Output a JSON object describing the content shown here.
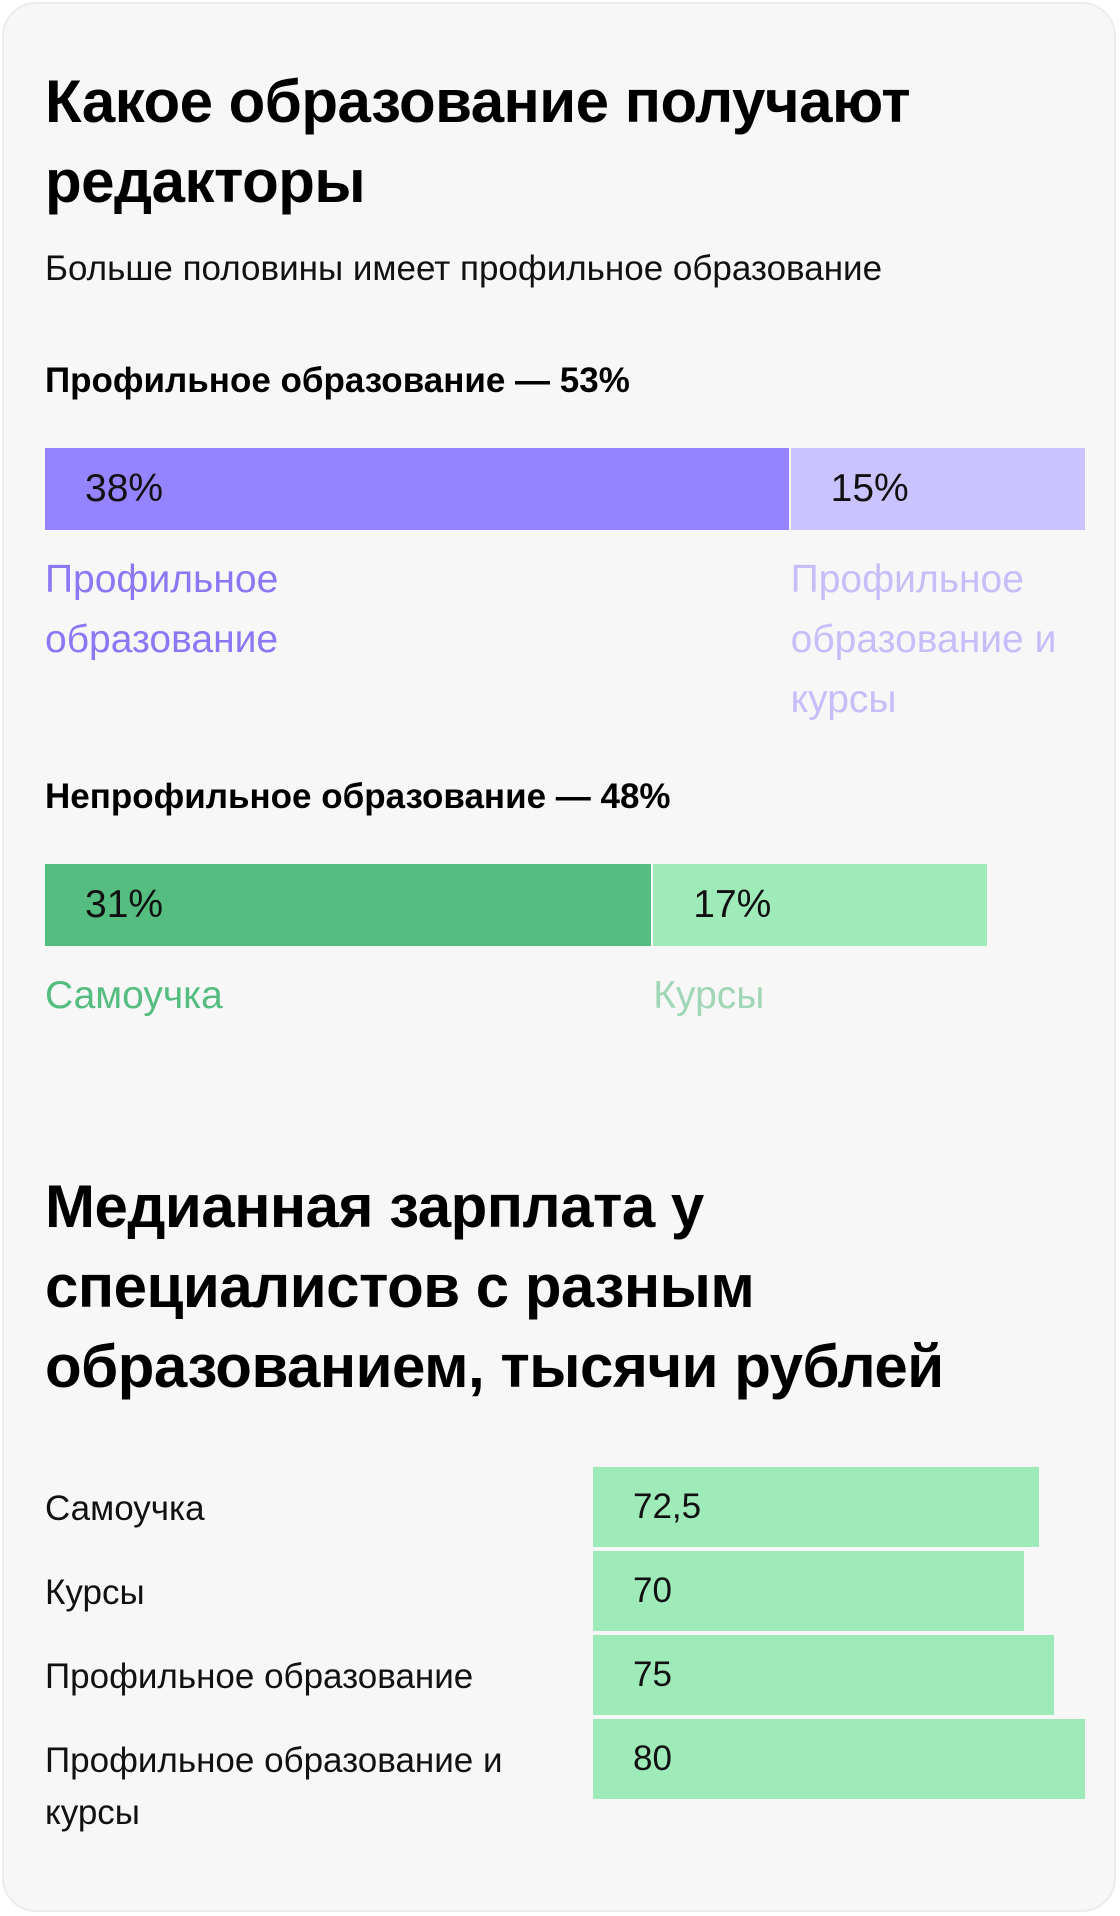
{
  "colors": {
    "profile_main": "#9583ff",
    "profile_courses": "#cbc3ff",
    "nonprofile_self": "#55bd7f",
    "nonprofile_courses": "#9eeab9",
    "salary_bar": "#9eeab9",
    "label_profile_main": "#8a78f5",
    "label_profile_courses": "#c7bef9",
    "label_self": "#55bd7f",
    "label_courses": "#a1d7b6"
  },
  "chart_data": [
    {
      "type": "bar",
      "title": "Какое образование получают редакторы",
      "subtitle": "Больше половины имеет профильное образование",
      "groups": [
        {
          "heading": "Профильное образование — 53%",
          "segments": [
            {
              "name": "Профильное образование",
              "value": 38,
              "value_label": "38%"
            },
            {
              "name": "Профильное образование и курсы",
              "value": 15,
              "value_label": "15%"
            }
          ]
        },
        {
          "heading": "Непрофильное образование — 48%",
          "segments": [
            {
              "name": "Самоучка",
              "value": 31,
              "value_label": "31%"
            },
            {
              "name": "Курсы",
              "value": 17,
              "value_label": "17%"
            }
          ]
        }
      ]
    },
    {
      "type": "bar",
      "title": "Медианная зарплата у специалистов с разным образованием, тысячи рублей",
      "categories": [
        "Самоучка",
        "Курсы",
        "Профильное образование",
        "Профильное образование и курсы"
      ],
      "values": [
        72.5,
        70,
        75,
        80
      ],
      "value_labels": [
        "72,5",
        "70",
        "75",
        "80"
      ]
    }
  ]
}
